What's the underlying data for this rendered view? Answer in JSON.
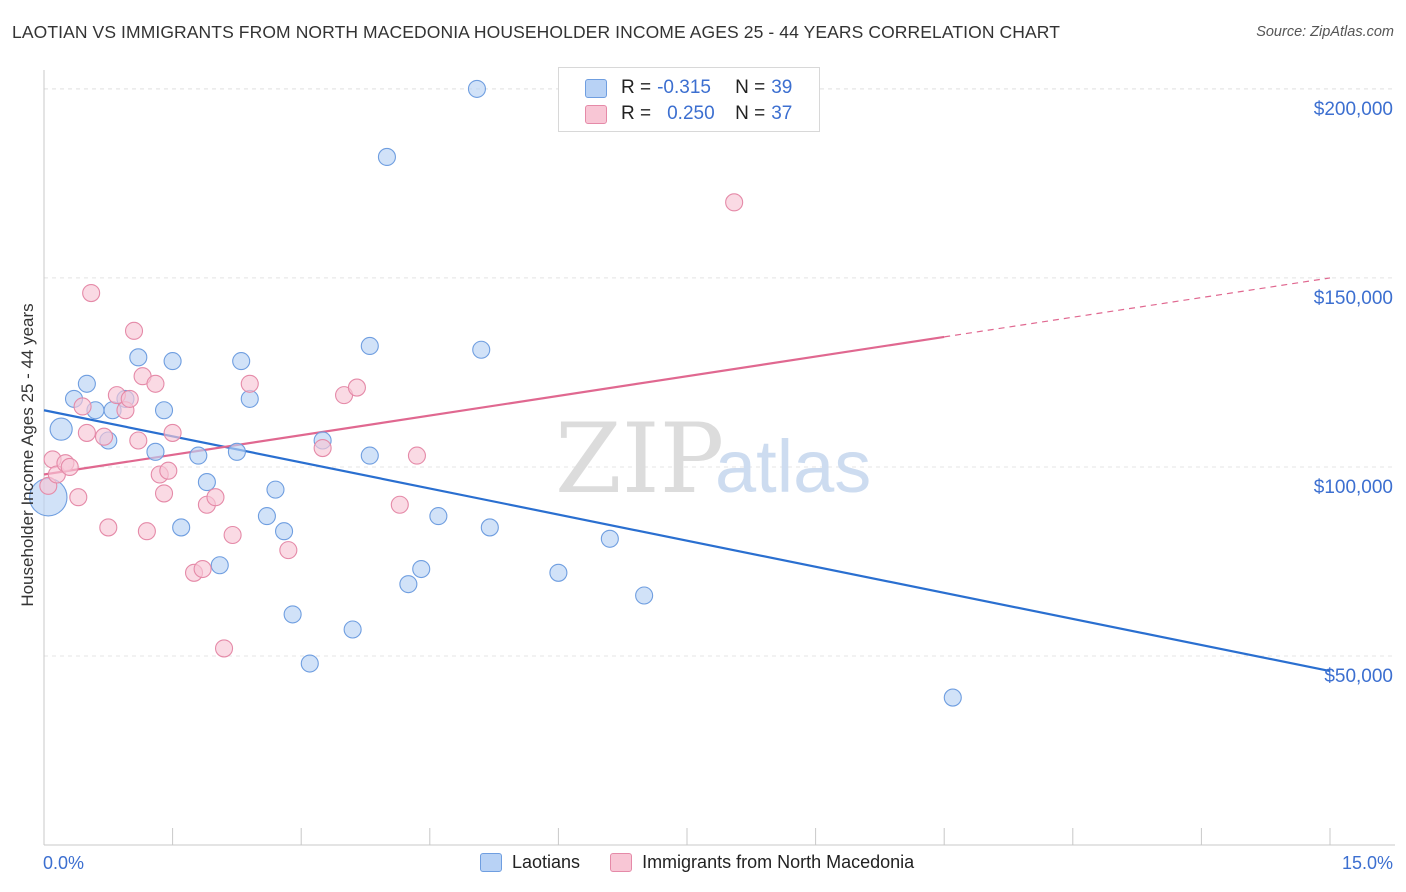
{
  "title": "LAOTIAN VS IMMIGRANTS FROM NORTH MACEDONIA HOUSEHOLDER INCOME AGES 25 - 44 YEARS CORRELATION CHART",
  "source": "Source: ZipAtlas.com",
  "watermark": {
    "zip": "ZIP",
    "atlas": "atlas"
  },
  "legend": {
    "r_label": "R =",
    "n_label": "N =",
    "rows": [
      {
        "r": "-0.315",
        "n": "39"
      },
      {
        "r": "0.250",
        "n": "37"
      }
    ]
  },
  "colors": {
    "blue_fill": "#b8d2f5",
    "blue_stroke": "#6f9ee0",
    "blue_line": "#2a6fd0",
    "pink_fill": "#f8c6d5",
    "pink_stroke": "#e58aa8",
    "pink_line": "#e06890",
    "axis_text": "#3c6fd0"
  },
  "chart_data": {
    "type": "scatter",
    "title": "LAOTIAN VS IMMIGRANTS FROM NORTH MACEDONIA HOUSEHOLDER INCOME AGES 25 - 44 YEARS CORRELATION CHART",
    "xlabel": "",
    "ylabel": "Householder Income Ages 25 - 44 years",
    "xlim": [
      0,
      15
    ],
    "ylim": [
      0,
      205000
    ],
    "x_tick_labels": [
      "0.0%",
      "15.0%"
    ],
    "y_ticks": [
      50000,
      100000,
      150000,
      200000
    ],
    "y_tick_labels": [
      "$50,000",
      "$100,000",
      "$150,000",
      "$200,000"
    ],
    "grid": true,
    "legend_position": "top-center",
    "series": [
      {
        "name": "Laotians",
        "r": -0.315,
        "n": 39,
        "trend": {
          "x": [
            0,
            15
          ],
          "y": [
            115000,
            46000
          ],
          "dashed_from": null
        },
        "points": [
          {
            "x": 0.05,
            "y": 92000,
            "s": 2.2
          },
          {
            "x": 0.2,
            "y": 110000,
            "s": 1.3
          },
          {
            "x": 0.35,
            "y": 118000
          },
          {
            "x": 0.5,
            "y": 122000
          },
          {
            "x": 0.6,
            "y": 115000
          },
          {
            "x": 0.75,
            "y": 107000
          },
          {
            "x": 0.8,
            "y": 115000
          },
          {
            "x": 0.95,
            "y": 118000
          },
          {
            "x": 1.1,
            "y": 129000
          },
          {
            "x": 1.3,
            "y": 104000
          },
          {
            "x": 1.4,
            "y": 115000
          },
          {
            "x": 1.5,
            "y": 128000
          },
          {
            "x": 1.6,
            "y": 84000
          },
          {
            "x": 1.8,
            "y": 103000
          },
          {
            "x": 1.9,
            "y": 96000
          },
          {
            "x": 2.05,
            "y": 74000
          },
          {
            "x": 2.25,
            "y": 104000
          },
          {
            "x": 2.3,
            "y": 128000
          },
          {
            "x": 2.4,
            "y": 118000
          },
          {
            "x": 2.6,
            "y": 87000
          },
          {
            "x": 2.7,
            "y": 94000
          },
          {
            "x": 2.8,
            "y": 83000
          },
          {
            "x": 2.9,
            "y": 61000
          },
          {
            "x": 3.1,
            "y": 48000
          },
          {
            "x": 3.25,
            "y": 107000
          },
          {
            "x": 3.6,
            "y": 57000
          },
          {
            "x": 3.8,
            "y": 132000
          },
          {
            "x": 3.8,
            "y": 103000
          },
          {
            "x": 4.0,
            "y": 182000
          },
          {
            "x": 4.25,
            "y": 69000
          },
          {
            "x": 4.4,
            "y": 73000
          },
          {
            "x": 4.6,
            "y": 87000
          },
          {
            "x": 5.05,
            "y": 200000
          },
          {
            "x": 5.1,
            "y": 131000
          },
          {
            "x": 5.2,
            "y": 84000
          },
          {
            "x": 6.0,
            "y": 72000
          },
          {
            "x": 6.6,
            "y": 81000
          },
          {
            "x": 7.0,
            "y": 66000
          },
          {
            "x": 10.6,
            "y": 39000
          }
        ]
      },
      {
        "name": "Immigrants from North Macedonia",
        "r": 0.25,
        "n": 37,
        "trend": {
          "x": [
            0,
            15
          ],
          "y": [
            98000,
            150000
          ],
          "dashed_from": 10.5
        },
        "points": [
          {
            "x": 0.05,
            "y": 95000
          },
          {
            "x": 0.1,
            "y": 102000
          },
          {
            "x": 0.15,
            "y": 98000
          },
          {
            "x": 0.25,
            "y": 101000
          },
          {
            "x": 0.3,
            "y": 100000
          },
          {
            "x": 0.4,
            "y": 92000
          },
          {
            "x": 0.45,
            "y": 116000
          },
          {
            "x": 0.5,
            "y": 109000
          },
          {
            "x": 0.55,
            "y": 146000
          },
          {
            "x": 0.7,
            "y": 108000
          },
          {
            "x": 0.75,
            "y": 84000
          },
          {
            "x": 0.85,
            "y": 119000
          },
          {
            "x": 0.95,
            "y": 115000
          },
          {
            "x": 1.0,
            "y": 118000
          },
          {
            "x": 1.05,
            "y": 136000
          },
          {
            "x": 1.1,
            "y": 107000
          },
          {
            "x": 1.15,
            "y": 124000
          },
          {
            "x": 1.2,
            "y": 83000
          },
          {
            "x": 1.3,
            "y": 122000
          },
          {
            "x": 1.35,
            "y": 98000
          },
          {
            "x": 1.4,
            "y": 93000
          },
          {
            "x": 1.45,
            "y": 99000
          },
          {
            "x": 1.5,
            "y": 109000
          },
          {
            "x": 1.75,
            "y": 72000
          },
          {
            "x": 1.85,
            "y": 73000
          },
          {
            "x": 1.9,
            "y": 90000
          },
          {
            "x": 2.0,
            "y": 92000
          },
          {
            "x": 2.1,
            "y": 52000
          },
          {
            "x": 2.2,
            "y": 82000
          },
          {
            "x": 2.4,
            "y": 122000
          },
          {
            "x": 2.85,
            "y": 78000
          },
          {
            "x": 3.25,
            "y": 105000
          },
          {
            "x": 3.5,
            "y": 119000
          },
          {
            "x": 3.65,
            "y": 121000
          },
          {
            "x": 4.15,
            "y": 90000
          },
          {
            "x": 4.35,
            "y": 103000
          },
          {
            "x": 8.05,
            "y": 170000
          }
        ]
      }
    ]
  }
}
